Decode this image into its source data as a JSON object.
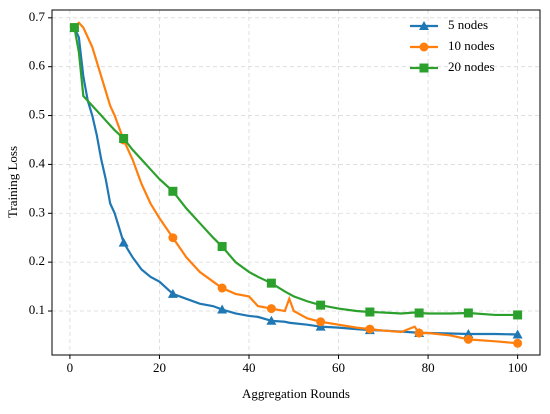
{
  "chart_data": {
    "type": "line",
    "xlabel": "Aggregation Rounds",
    "ylabel": "Training Loss",
    "x": [
      1,
      2,
      3,
      4,
      5,
      6,
      7,
      8,
      9,
      10,
      12,
      14,
      16,
      18,
      20,
      23,
      26,
      29,
      32,
      34,
      37,
      40,
      42,
      45,
      48,
      49,
      50,
      53,
      56,
      60,
      64,
      67,
      70,
      74,
      77,
      78,
      80,
      85,
      89,
      95,
      100
    ],
    "series": [
      {
        "name": "5 nodes",
        "color": "#1f77b4",
        "marker": "triangle",
        "values": [
          0.68,
          0.66,
          0.58,
          0.53,
          0.5,
          0.46,
          0.41,
          0.37,
          0.32,
          0.3,
          0.24,
          0.21,
          0.185,
          0.17,
          0.16,
          0.135,
          0.125,
          0.115,
          0.11,
          0.103,
          0.095,
          0.09,
          0.088,
          0.08,
          0.078,
          0.076,
          0.075,
          0.072,
          0.068,
          0.066,
          0.063,
          0.061,
          0.06,
          0.058,
          0.056,
          0.055,
          0.055,
          0.054,
          0.053,
          0.053,
          0.052
        ]
      },
      {
        "name": "10 nodes",
        "color": "#ff7f0e",
        "marker": "circle",
        "values": [
          0.68,
          0.69,
          0.68,
          0.66,
          0.64,
          0.61,
          0.58,
          0.55,
          0.52,
          0.5,
          0.45,
          0.41,
          0.36,
          0.32,
          0.29,
          0.25,
          0.21,
          0.18,
          0.16,
          0.147,
          0.135,
          0.13,
          0.11,
          0.105,
          0.1,
          0.125,
          0.1,
          0.085,
          0.078,
          0.072,
          0.066,
          0.063,
          0.06,
          0.057,
          0.068,
          0.055,
          0.055,
          0.05,
          0.042,
          0.038,
          0.034
        ]
      },
      {
        "name": "20 nodes",
        "color": "#2ca02c",
        "marker": "square",
        "values": [
          0.68,
          0.63,
          0.54,
          0.53,
          0.52,
          0.51,
          0.5,
          0.49,
          0.48,
          0.47,
          0.453,
          0.43,
          0.41,
          0.39,
          0.37,
          0.345,
          0.31,
          0.28,
          0.25,
          0.232,
          0.2,
          0.18,
          0.17,
          0.157,
          0.14,
          0.135,
          0.13,
          0.12,
          0.112,
          0.105,
          0.1,
          0.098,
          0.097,
          0.095,
          0.097,
          0.096,
          0.095,
          0.095,
          0.096,
          0.092,
          0.092
        ]
      }
    ],
    "xlim": [
      -4,
      105
    ],
    "ylim": [
      0.01,
      0.716
    ],
    "xticks": [
      0,
      20,
      40,
      60,
      80,
      100
    ],
    "yticks": [
      0.1,
      0.2,
      0.3,
      0.4,
      0.5,
      0.6,
      0.7
    ],
    "grid": true,
    "legend": "upper right"
  }
}
